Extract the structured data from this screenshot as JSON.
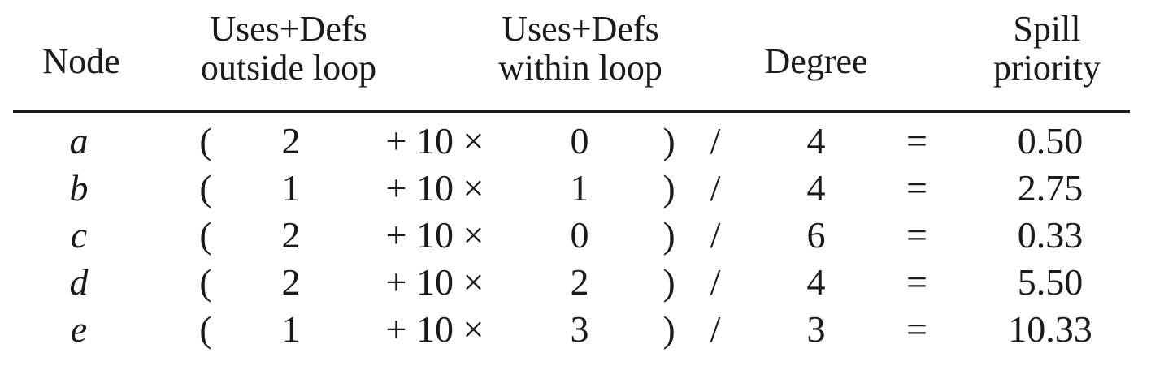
{
  "headers": {
    "node": "Node",
    "outside": [
      "Uses+Defs",
      "outside loop"
    ],
    "within": [
      "Uses+Defs",
      "within loop"
    ],
    "degree": "Degree",
    "spill": [
      "Spill",
      "priority"
    ]
  },
  "symbols": {
    "open_paren": "(",
    "plus_ten_times": "+ 10 ×",
    "close_paren": ")",
    "divide": "/",
    "equals": "="
  },
  "rows": [
    {
      "node": "a",
      "outside": "2",
      "within": "0",
      "degree": "4",
      "priority": "0.50"
    },
    {
      "node": "b",
      "outside": "1",
      "within": "1",
      "degree": "4",
      "priority": "2.75"
    },
    {
      "node": "c",
      "outside": "2",
      "within": "0",
      "degree": "6",
      "priority": "0.33"
    },
    {
      "node": "d",
      "outside": "2",
      "within": "2",
      "degree": "4",
      "priority": "5.50"
    },
    {
      "node": "e",
      "outside": "1",
      "within": "3",
      "degree": "3",
      "priority": "10.33"
    }
  ]
}
